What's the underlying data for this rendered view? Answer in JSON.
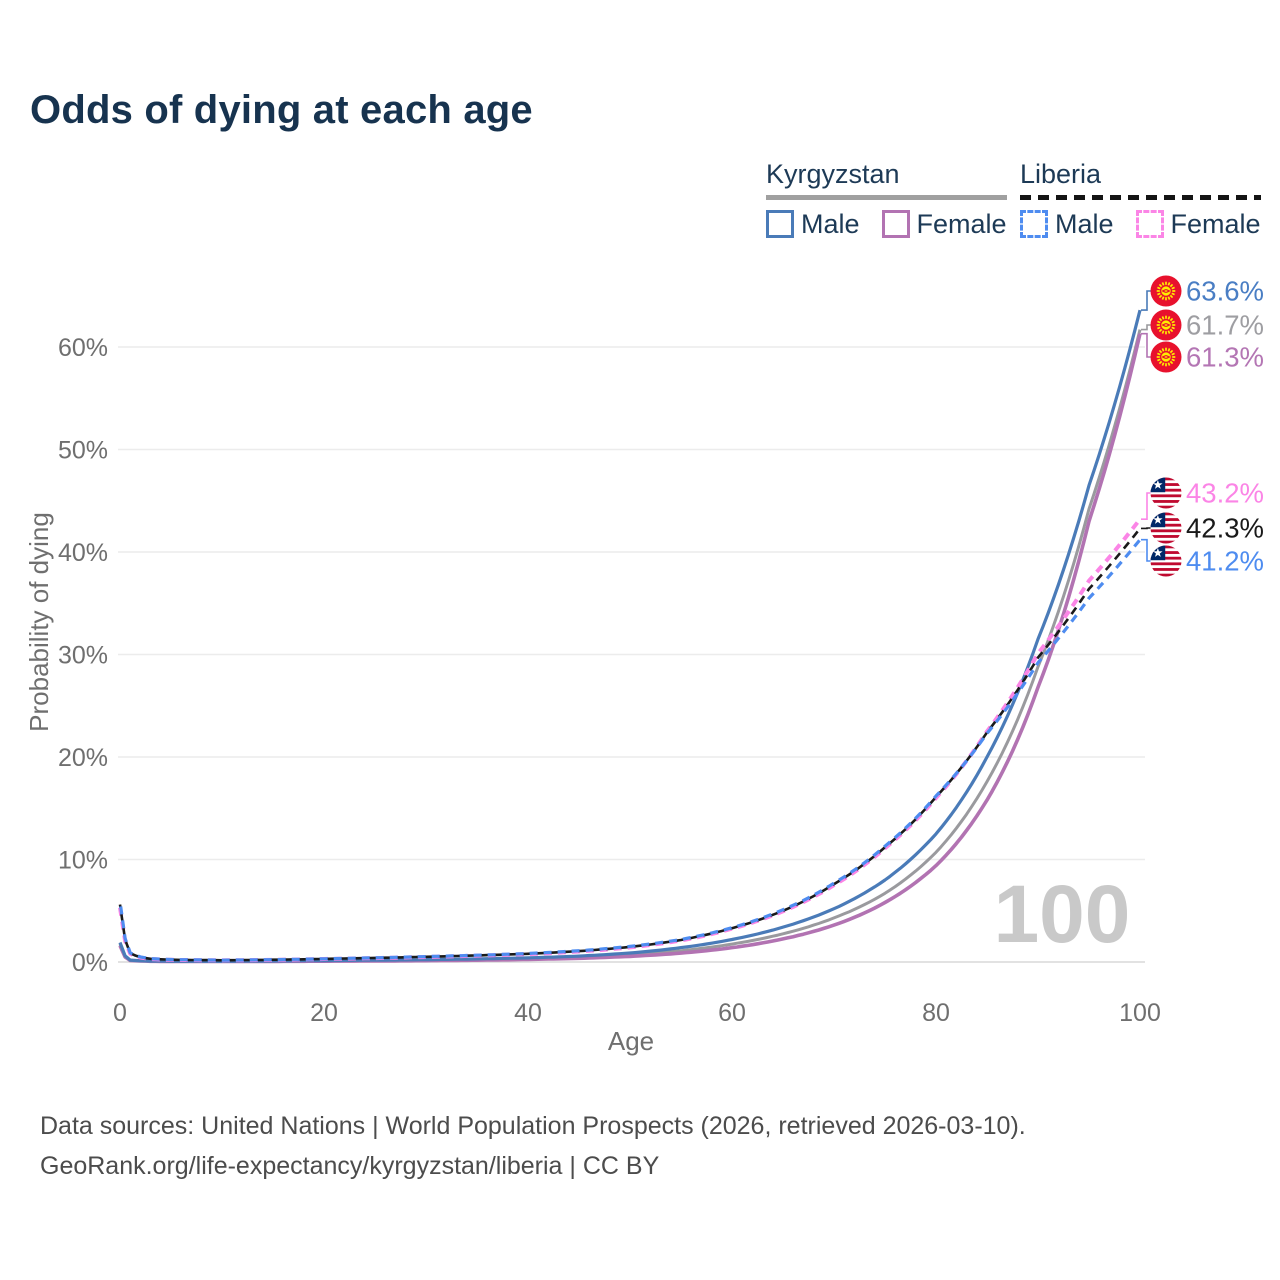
{
  "title": "Odds of dying at each age",
  "legend": {
    "groups": [
      {
        "label": "Kyrgyzstan",
        "line_style": "solid",
        "underline_color": "#a0a0a0",
        "items": [
          {
            "label": "Male",
            "color": "#4a7bb8",
            "dashed": false
          },
          {
            "label": "Female",
            "color": "#b273b2",
            "dashed": false
          }
        ]
      },
      {
        "label": "Liberia",
        "line_style": "dashed",
        "underline_color": "#141414",
        "items": [
          {
            "label": "Male",
            "color": "#4e8cf0",
            "dashed": true
          },
          {
            "label": "Female",
            "color": "#fb85e6",
            "dashed": true
          }
        ]
      }
    ]
  },
  "colors": {
    "title": "#17334f",
    "grid": "#ececec",
    "axis_line": "#d8d8d8",
    "tick_text": "#6f6f6f",
    "watermark": "#c9c9c9",
    "kg_flag_red": "#E8112D",
    "kg_flag_yellow": "#FFEF00",
    "lr_flag_red": "#BF0A30",
    "lr_flag_blue": "#002868",
    "lr_flag_white": "#FFFFFF"
  },
  "chart_data": {
    "type": "line",
    "title": "Odds of dying at each age",
    "xlabel": "Age",
    "ylabel": "Probability of dying",
    "xlim": [
      0,
      100
    ],
    "ylim_pct": [
      0,
      66
    ],
    "x_ticks": [
      0,
      20,
      40,
      60,
      80,
      100
    ],
    "y_ticks": [
      {
        "v": 0,
        "label": "0%"
      },
      {
        "v": 10,
        "label": "10%"
      },
      {
        "v": 20,
        "label": "20%"
      },
      {
        "v": 30,
        "label": "30%"
      },
      {
        "v": 40,
        "label": "40%"
      },
      {
        "v": 50,
        "label": "50%"
      },
      {
        "v": 60,
        "label": "60%"
      }
    ],
    "grid": "horizontal",
    "watermark": "100",
    "ages": [
      0,
      1,
      2,
      3,
      5,
      10,
      15,
      20,
      25,
      30,
      35,
      40,
      45,
      50,
      55,
      60,
      65,
      70,
      75,
      80,
      85,
      90,
      95,
      100
    ],
    "series": [
      {
        "id": "kg_both",
        "name": "Kyrgyzstan",
        "sex": "Both",
        "flag": "kg",
        "color": "#9a9a9e",
        "dashed": false,
        "width": 3,
        "end_label": "61.7%",
        "label_color": "#9e9ea2",
        "values": [
          1.75,
          0.17,
          0.11,
          0.08,
          0.06,
          0.05,
          0.08,
          0.11,
          0.14,
          0.18,
          0.24,
          0.32,
          0.46,
          0.7,
          1.1,
          1.75,
          2.75,
          4.3,
          6.7,
          10.7,
          17.6,
          28.8,
          44.2,
          61.7
        ]
      },
      {
        "id": "kg_female",
        "name": "Kyrgyzstan Female",
        "sex": "Female",
        "flag": "kg",
        "color": "#b273b2",
        "dashed": false,
        "width": 3.6,
        "end_label": "61.3%",
        "label_color": "#b476b4",
        "values": [
          1.6,
          0.15,
          0.1,
          0.07,
          0.05,
          0.045,
          0.06,
          0.08,
          0.1,
          0.13,
          0.18,
          0.25,
          0.36,
          0.55,
          0.87,
          1.4,
          2.25,
          3.6,
          5.8,
          9.4,
          15.8,
          26.8,
          43.0,
          61.3
        ]
      },
      {
        "id": "kg_male",
        "name": "Kyrgyzstan Male",
        "sex": "Male",
        "flag": "kg",
        "color": "#4a7bb8",
        "dashed": false,
        "width": 3.2,
        "end_label": "63.6%",
        "label_color": "#4a7ec4",
        "values": [
          1.9,
          0.19,
          0.12,
          0.09,
          0.07,
          0.06,
          0.1,
          0.14,
          0.18,
          0.23,
          0.3,
          0.4,
          0.58,
          0.88,
          1.4,
          2.2,
          3.4,
          5.2,
          8.0,
          12.5,
          20.0,
          31.5,
          46.5,
          63.6
        ]
      },
      {
        "id": "lr_female",
        "name": "Liberia Female",
        "sex": "Female",
        "flag": "lr",
        "color": "#fb85e6",
        "dashed": true,
        "width": 4.0,
        "dashoffset": 0,
        "end_label": "43.2%",
        "label_color": "#fb85e6",
        "values": [
          5.3,
          0.8,
          0.44,
          0.29,
          0.21,
          0.16,
          0.21,
          0.29,
          0.38,
          0.49,
          0.62,
          0.77,
          1.02,
          1.42,
          2.1,
          3.25,
          4.95,
          7.5,
          11.1,
          16.0,
          22.5,
          30.1,
          37.2,
          43.2
        ]
      },
      {
        "id": "lr_both",
        "name": "Liberia",
        "sex": "Both",
        "flag": "lr",
        "color": "#1a1a1a",
        "dashed": true,
        "width": 2.6,
        "dashoffset": 5,
        "end_label": "42.3%",
        "label_color": "#1a1a1a",
        "values": [
          5.6,
          0.85,
          0.47,
          0.31,
          0.22,
          0.17,
          0.22,
          0.3,
          0.4,
          0.51,
          0.64,
          0.8,
          1.06,
          1.47,
          2.15,
          3.3,
          5.0,
          7.6,
          11.2,
          16.1,
          22.4,
          29.7,
          36.4,
          42.3
        ]
      },
      {
        "id": "lr_male",
        "name": "Liberia Male",
        "sex": "Male",
        "flag": "lr",
        "color": "#4e8cf0",
        "dashed": true,
        "width": 3.2,
        "dashoffset": 9,
        "end_label": "41.2%",
        "label_color": "#4e8cf0",
        "values": [
          5.9,
          0.9,
          0.5,
          0.33,
          0.24,
          0.18,
          0.23,
          0.31,
          0.41,
          0.53,
          0.66,
          0.83,
          1.1,
          1.52,
          2.2,
          3.35,
          5.1,
          7.7,
          11.3,
          16.2,
          22.3,
          29.2,
          35.5,
          41.2
        ]
      }
    ]
  },
  "footer": {
    "line1": "Data sources: United Nations | World Population Prospects (2026, retrieved 2026-03-10).",
    "line2": "GeoRank.org/life-expectancy/kyrgyzstan/liberia | CC BY"
  }
}
